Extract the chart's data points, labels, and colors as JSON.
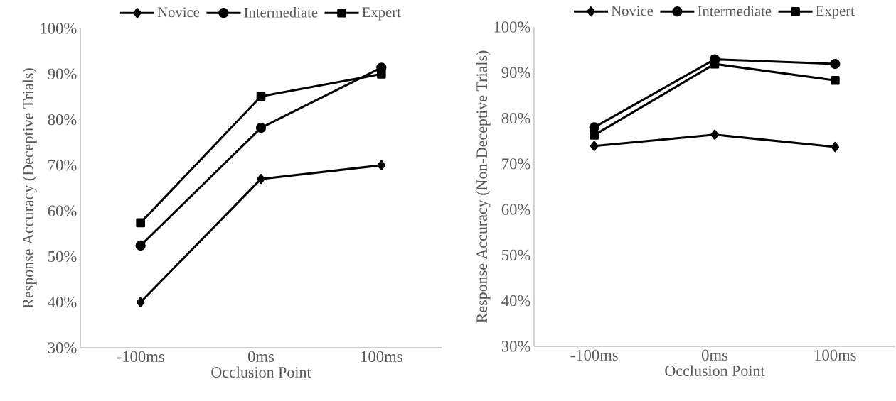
{
  "chart_data": [
    {
      "type": "line",
      "categories": [
        "-100ms",
        "0ms",
        "100ms"
      ],
      "xlabel": "Occlusion Point",
      "ylabel": "Response Accuracy (Deceptive Trials)",
      "ylim": [
        30,
        100
      ],
      "yticks": [
        {
          "value": 30,
          "label": "30%"
        },
        {
          "value": 40,
          "label": "40%"
        },
        {
          "value": 50,
          "label": "50%"
        },
        {
          "value": 60,
          "label": "60%"
        },
        {
          "value": 70,
          "label": "70%"
        },
        {
          "value": 80,
          "label": "80%"
        },
        {
          "value": 90,
          "label": "90%"
        },
        {
          "value": 100,
          "label": "100%"
        }
      ],
      "legend": "top",
      "grid": false,
      "line_style": "solid",
      "series": [
        {
          "name": "Novice",
          "color": "#000000",
          "marker": "diamond",
          "values": [
            40,
            67,
            70
          ]
        },
        {
          "name": "Intermediate",
          "color": "#000000",
          "marker": "circle",
          "values": [
            52.4,
            78.2,
            91.4
          ]
        },
        {
          "name": "Expert",
          "color": "#000000",
          "marker": "square",
          "values": [
            57.4,
            85.1,
            90
          ]
        }
      ]
    },
    {
      "type": "line",
      "categories": [
        "-100ms",
        "0ms",
        "100ms"
      ],
      "xlabel": "Occlusion Point",
      "ylabel": "Response Accuracy (Non-Deceptive Trials)",
      "ylim": [
        30,
        100
      ],
      "yticks": [
        {
          "value": 30,
          "label": "30%"
        },
        {
          "value": 40,
          "label": "40%"
        },
        {
          "value": 50,
          "label": "50%"
        },
        {
          "value": 60,
          "label": "60%"
        },
        {
          "value": 70,
          "label": "70%"
        },
        {
          "value": 80,
          "label": "80%"
        },
        {
          "value": 90,
          "label": "90%"
        },
        {
          "value": 100,
          "label": "100%"
        }
      ],
      "legend": "top",
      "grid": false,
      "line_style": "solid",
      "series": [
        {
          "name": "Novice",
          "color": "#000000",
          "marker": "diamond",
          "values": [
            73.9,
            76.4,
            73.7
          ]
        },
        {
          "name": "Intermediate",
          "color": "#000000",
          "marker": "circle",
          "values": [
            78.0,
            92.9,
            91.9
          ]
        },
        {
          "name": "Expert",
          "color": "#000000",
          "marker": "square",
          "values": [
            76.3,
            91.9,
            88.3
          ]
        }
      ]
    }
  ]
}
